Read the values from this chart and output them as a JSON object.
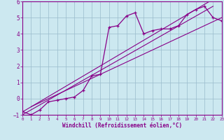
{
  "xlabel": "Windchill (Refroidissement éolien,°C)",
  "bg_color": "#cce8f0",
  "line_color": "#880088",
  "grid_color": "#99bbcc",
  "hours": [
    0,
    1,
    2,
    3,
    4,
    5,
    6,
    7,
    8,
    9,
    10,
    11,
    12,
    13,
    14,
    15,
    16,
    17,
    18,
    19,
    20,
    21,
    22,
    23
  ],
  "windchill": [
    -0.8,
    -1.0,
    -0.7,
    -0.2,
    -0.1,
    0.0,
    0.1,
    0.5,
    1.4,
    1.5,
    4.4,
    4.5,
    5.1,
    5.3,
    4.0,
    4.2,
    4.3,
    4.3,
    4.5,
    5.2,
    5.5,
    5.7,
    5.0,
    4.8
  ],
  "reg1": [
    -1.0,
    5.7
  ],
  "reg2": [
    -0.5,
    5.0
  ],
  "xmin": 0,
  "xmax": 23,
  "ymin": -1,
  "ymax": 6,
  "xtick_labels": [
    "0",
    "1",
    "2",
    "3",
    "4",
    "5",
    "6",
    "7",
    "8",
    "9",
    "10",
    "11",
    "12",
    "13",
    "14",
    "15",
    "16",
    "17",
    "18",
    "19",
    "20",
    "21",
    "22",
    "23"
  ],
  "ytick_labels": [
    "-1",
    "0",
    "1",
    "2",
    "3",
    "4",
    "5",
    "6"
  ],
  "ytick_vals": [
    -1,
    0,
    1,
    2,
    3,
    4,
    5,
    6
  ]
}
